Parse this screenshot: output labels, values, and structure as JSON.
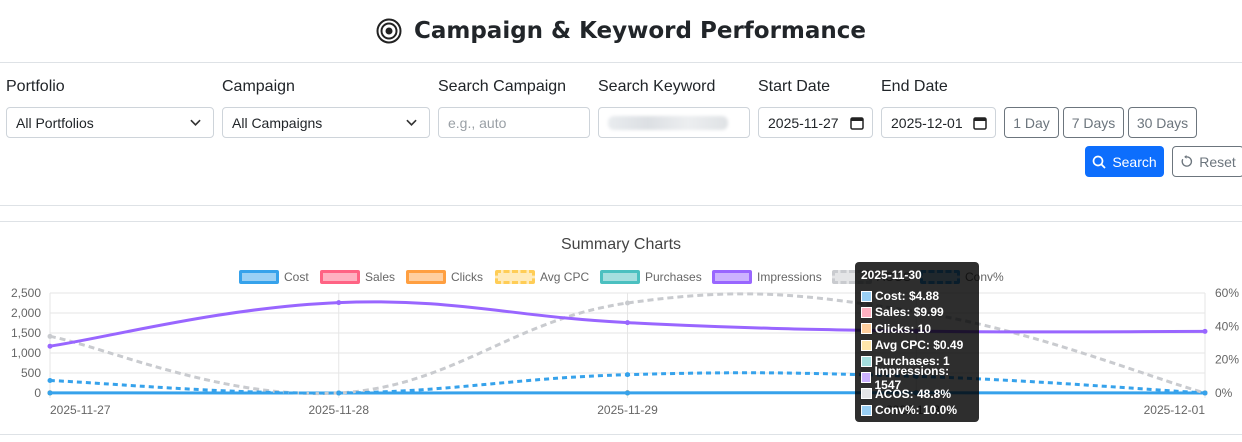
{
  "header": {
    "title": "Campaign & Keyword Performance",
    "icon": "target-icon"
  },
  "filters": {
    "portfolio": {
      "label": "Portfolio",
      "value": "All Portfolios"
    },
    "campaign": {
      "label": "Campaign",
      "value": "All Campaigns"
    },
    "search_campaign": {
      "label": "Search Campaign",
      "placeholder": "e.g., auto"
    },
    "search_keyword": {
      "label": "Search Keyword"
    },
    "start_date": {
      "label": "Start Date",
      "value": "2025-11-27"
    },
    "end_date": {
      "label": "End Date",
      "value": "2025-12-01"
    },
    "quick_ranges": [
      "1 Day",
      "7 Days",
      "30 Days"
    ],
    "search_button": "Search",
    "reset_button": "Reset"
  },
  "colors": {
    "primary": "#0d6efd",
    "cost": "#36a2eb",
    "sales": "#ff6384",
    "clicks": "#ff9f40",
    "avg_cpc": "#ffcd56",
    "purchases": "#4bc0c0",
    "impressions": "#9966ff",
    "acos": "#c9cbcf"
  },
  "chart_data": {
    "type": "line",
    "title": "Summary Charts",
    "categories": [
      "2025-11-27",
      "2025-11-28",
      "2025-11-29",
      "2025-11-30",
      "2025-12-01"
    ],
    "y_left": {
      "ticks": [
        "0",
        "500",
        "1,000",
        "1,500",
        "2,000",
        "2,500"
      ],
      "range": [
        0,
        2500
      ]
    },
    "y_right": {
      "ticks": [
        "0%",
        "20%",
        "40%",
        "60%"
      ],
      "range": [
        0,
        60
      ]
    },
    "legend": [
      "Cost",
      "Sales",
      "Clicks",
      "Avg CPC",
      "Purchases",
      "Impressions",
      "ACOS",
      "Conv%"
    ],
    "legend_position": "top",
    "grid": true,
    "series": [
      {
        "name": "Cost",
        "axis": "left",
        "values": [
          3,
          0,
          4,
          4.88,
          1
        ]
      },
      {
        "name": "Sales",
        "axis": "left",
        "values": [
          0,
          0,
          0,
          9.99,
          0
        ]
      },
      {
        "name": "Clicks",
        "axis": "left",
        "values": [
          6,
          0,
          8,
          10,
          2
        ]
      },
      {
        "name": "Avg CPC",
        "axis": "left",
        "values": [
          0.5,
          0,
          0.5,
          0.49,
          0.5
        ]
      },
      {
        "name": "Purchases",
        "axis": "left",
        "values": [
          0,
          0,
          0,
          1,
          0
        ]
      },
      {
        "name": "Impressions",
        "axis": "left",
        "values": [
          1170,
          2260,
          1760,
          1547,
          1540
        ]
      },
      {
        "name": "ACOS",
        "axis": "right",
        "values": [
          34,
          0,
          54,
          48.8,
          0
        ]
      },
      {
        "name": "Conv%",
        "axis": "right",
        "values": [
          7.5,
          0,
          11,
          10.0,
          0
        ]
      }
    ],
    "tooltip": {
      "title": "2025-11-30",
      "rows": [
        "Cost: $4.88",
        "Sales: $9.99",
        "Clicks: 10",
        "Avg CPC: $0.49",
        "Purchases: 1",
        "Impressions: 1547",
        "ACOS: 48.8%",
        "Conv%: 10.0%"
      ]
    }
  }
}
